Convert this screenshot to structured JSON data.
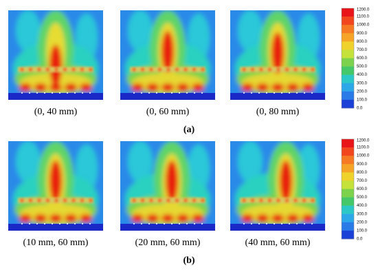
{
  "figure": {
    "rows": [
      {
        "panels": [
          {
            "label": "(0, 40 mm)"
          },
          {
            "label": "(0, 60 mm)"
          },
          {
            "label": "(0, 80 mm)"
          }
        ],
        "caption": "(a)",
        "colorbar": {
          "ticks": [
            "1200.0",
            "1100.0",
            "1000.0",
            "900.0",
            "800.0",
            "700.0",
            "600.0",
            "500.0",
            "400.0",
            "300.0",
            "200.0",
            "100.0",
            "0.0"
          ]
        }
      },
      {
        "panels": [
          {
            "label": "(10 mm, 60 mm)"
          },
          {
            "label": "(20 mm, 60 mm)"
          },
          {
            "label": "(40 mm, 60 mm)"
          }
        ],
        "caption": "(b)",
        "colorbar": {
          "ticks": [
            "1200.0",
            "1100.0",
            "1000.0",
            "900.0",
            "800.0",
            "700.0",
            "600.0",
            "500.0",
            "400.0",
            "300.0",
            "200.0",
            "100.0",
            "0.0"
          ]
        }
      }
    ]
  }
}
